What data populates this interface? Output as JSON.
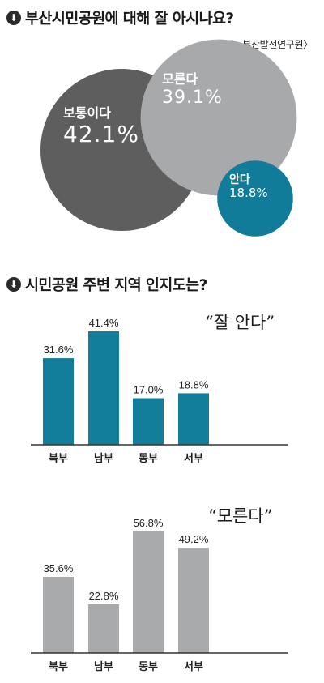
{
  "header1": {
    "title": "부산시민공원에 대해 잘 아시나요?",
    "source": "〈자료=부산발전연구원〉",
    "icon": "down-arrow-circle-icon"
  },
  "header2": {
    "title": "시민공원 주변 지역 인지도는?",
    "icon": "down-arrow-circle-icon"
  },
  "colors": {
    "dark_gray": "#5e5e5e",
    "light_gray": "#a8a9ab",
    "teal": "#117c99",
    "bar_teal": "#137e9b",
    "bar_gray": "#a9aaac"
  },
  "chart_data": [
    {
      "type": "bubble",
      "title": "부산시민공원에 대해 잘 아시나요?",
      "categories": [
        "보통이다",
        "모른다",
        "안다"
      ],
      "values": [
        42.1,
        39.1,
        18.8
      ],
      "value_labels": [
        "42.1%",
        "39.1%",
        "18.8%"
      ]
    },
    {
      "type": "bar",
      "title": "시민공원 주변 지역 인지도는?",
      "annotation": "“잘 안다”",
      "categories": [
        "북부",
        "남부",
        "동부",
        "서부"
      ],
      "values": [
        31.6,
        41.4,
        17.0,
        18.8
      ],
      "value_labels": [
        "31.6%",
        "41.4%",
        "17.0%",
        "18.8%"
      ],
      "ylim": [
        0,
        45
      ]
    },
    {
      "type": "bar",
      "annotation": "“모른다”",
      "categories": [
        "북부",
        "남부",
        "동부",
        "서부"
      ],
      "values": [
        35.6,
        22.8,
        56.8,
        49.2
      ],
      "value_labels": [
        "35.6%",
        "22.8%",
        "56.8%",
        "49.2%"
      ],
      "ylim": [
        0,
        62
      ]
    }
  ]
}
